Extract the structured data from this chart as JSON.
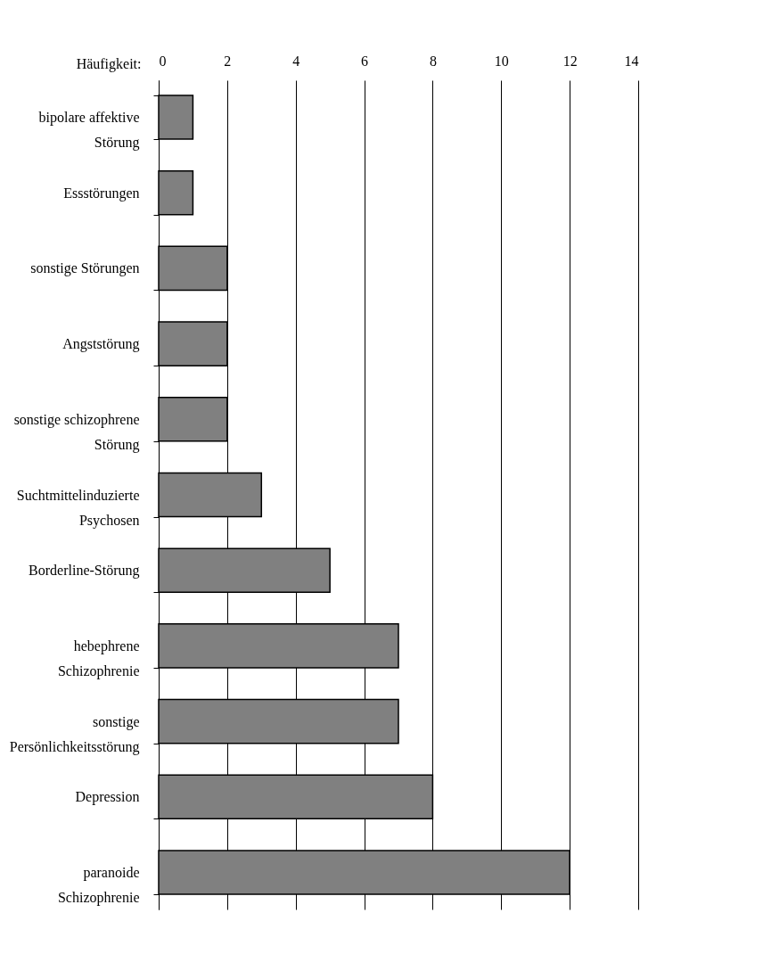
{
  "chart_data": {
    "type": "bar",
    "orientation": "horizontal",
    "xlabel": "Häufigkeit:",
    "categories": [
      "bipolare affektive Störung",
      "Essstörungen",
      "sonstige Störungen",
      "Angststörung",
      "sonstige schizophrene Störung",
      "Suchtmittelinduzierte Psychosen",
      "Borderline-Störung",
      "hebephrene Schizophrenie",
      "sonstige Persönlichkeitsstörung",
      "Depression",
      "paranoide Schizophrenie"
    ],
    "values": [
      1,
      1,
      2,
      2,
      2,
      3,
      5,
      7,
      7,
      8,
      12
    ],
    "color": "#808080",
    "xlim": [
      0,
      14
    ],
    "xticks": [
      0,
      2,
      4,
      6,
      8,
      10,
      12,
      14
    ],
    "grid": "x"
  }
}
